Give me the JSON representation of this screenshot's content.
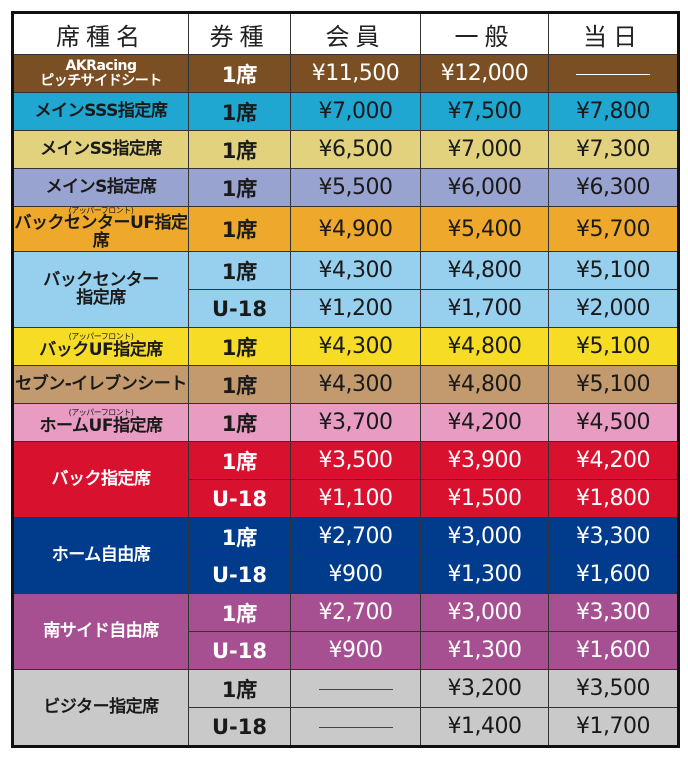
{
  "headers": [
    "席種名",
    "券種",
    "会員",
    "一般",
    "当日"
  ],
  "rows": [
    {
      "name": "AKRacing",
      "name2": "ピッチサイドシート",
      "color": "#7a4f24",
      "white": true,
      "tickets": [
        {
          "type": "1席",
          "prices": [
            "¥11,500",
            "¥12,000",
            "—"
          ]
        }
      ]
    },
    {
      "name": "メインSSS指定席",
      "color": "#1fa6d1",
      "tickets": [
        {
          "type": "1席",
          "prices": [
            "¥7,000",
            "¥7,500",
            "¥7,800"
          ]
        }
      ]
    },
    {
      "name": "メインSS指定席",
      "color": "#e2d27d",
      "tickets": [
        {
          "type": "1席",
          "prices": [
            "¥6,500",
            "¥7,000",
            "¥7,300"
          ]
        }
      ]
    },
    {
      "name": "メインS指定席",
      "color": "#98a3cf",
      "tickets": [
        {
          "type": "1席",
          "prices": [
            "¥5,500",
            "¥6,000",
            "¥6,300"
          ]
        }
      ]
    },
    {
      "note": "(アッパーフロント)",
      "name": "バックセンターUF指定席",
      "color": "#eea82b",
      "tickets": [
        {
          "type": "1席",
          "prices": [
            "¥4,900",
            "¥5,400",
            "¥5,700"
          ]
        }
      ]
    },
    {
      "name": "バックセンター",
      "name2": "指定席",
      "color": "#97d0ee",
      "tickets": [
        {
          "type": "1席",
          "prices": [
            "¥4,300",
            "¥4,800",
            "¥5,100"
          ]
        },
        {
          "type": "U-18",
          "prices": [
            "¥1,200",
            "¥1,700",
            "¥2,000"
          ]
        }
      ]
    },
    {
      "note": "(アッパーフロント)",
      "name": "バックUF指定席",
      "color": "#f6dc25",
      "tickets": [
        {
          "type": "1席",
          "prices": [
            "¥4,300",
            "¥4,800",
            "¥5,100"
          ]
        }
      ]
    },
    {
      "name": "セブン-イレブンシート",
      "color": "#c29a6e",
      "tickets": [
        {
          "type": "1席",
          "prices": [
            "¥4,300",
            "¥4,800",
            "¥5,100"
          ]
        }
      ]
    },
    {
      "note": "(アッパーフロント)",
      "name": "ホームUF指定席",
      "color": "#e89cc1",
      "tickets": [
        {
          "type": "1席",
          "prices": [
            "¥3,700",
            "¥4,200",
            "¥4,500"
          ]
        }
      ]
    },
    {
      "name": "バック指定席",
      "color": "#d8112f",
      "white": true,
      "tickets": [
        {
          "type": "1席",
          "prices": [
            "¥3,500",
            "¥3,900",
            "¥4,200"
          ]
        },
        {
          "type": "U-18",
          "prices": [
            "¥1,100",
            "¥1,500",
            "¥1,800"
          ]
        }
      ]
    },
    {
      "name": "ホーム自由席",
      "color": "#003b8c",
      "white": true,
      "tickets": [
        {
          "type": "1席",
          "prices": [
            "¥2,700",
            "¥3,000",
            "¥3,300"
          ]
        },
        {
          "type": "U-18",
          "prices": [
            "¥900",
            "¥1,300",
            "¥1,600"
          ]
        }
      ]
    },
    {
      "name": "南サイド自由席",
      "color": "#a65092",
      "white": true,
      "tickets": [
        {
          "type": "1席",
          "prices": [
            "¥2,700",
            "¥3,000",
            "¥3,300"
          ]
        },
        {
          "type": "U-18",
          "prices": [
            "¥900",
            "¥1,300",
            "¥1,600"
          ]
        }
      ]
    },
    {
      "name": "ビジター指定席",
      "color": "#c9c9c9",
      "tickets": [
        {
          "type": "1席",
          "prices": [
            "—",
            "¥3,200",
            "¥3,500"
          ]
        },
        {
          "type": "U-18",
          "prices": [
            "—",
            "¥1,400",
            "¥1,700"
          ]
        }
      ]
    }
  ]
}
